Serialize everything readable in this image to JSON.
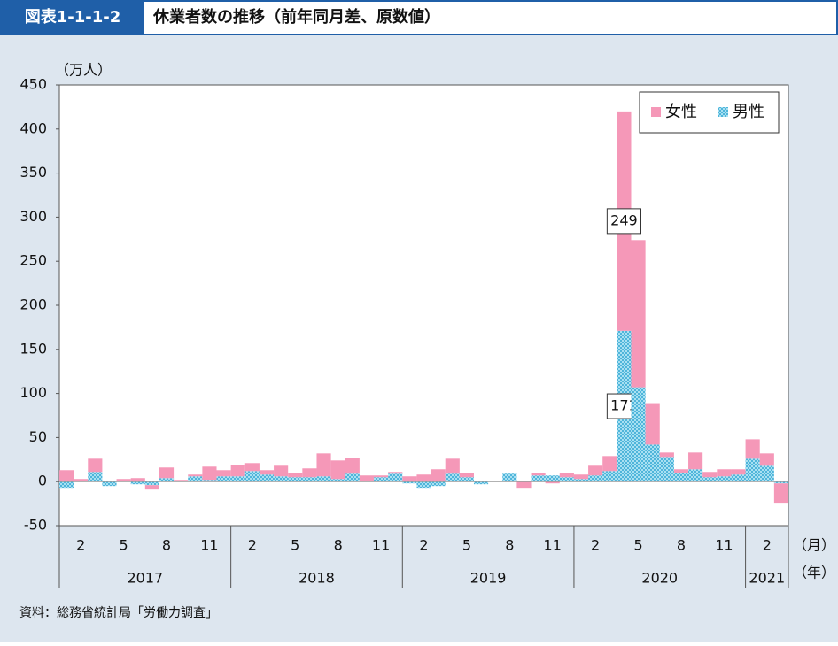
{
  "header": {
    "badge": "図表1-1-1-2",
    "title": "休業者数の推移（前年同月差、原数値）"
  },
  "chart_data": {
    "type": "stacked_bar",
    "y_unit": "（万人）",
    "x_unit_month": "（月）",
    "x_unit_year": "（年）",
    "categories": [
      null,
      "2",
      null,
      null,
      "5",
      null,
      null,
      "8",
      null,
      null,
      "11",
      null,
      null,
      "2",
      null,
      null,
      "5",
      null,
      null,
      "8",
      null,
      null,
      "11",
      null,
      null,
      "2",
      null,
      null,
      "5",
      null,
      null,
      "8",
      null,
      null,
      "11",
      null,
      null,
      "2",
      null,
      null,
      "5",
      null,
      null,
      "8",
      null,
      null,
      "11",
      null,
      null,
      "2",
      null
    ],
    "years": [
      "2017",
      "2018",
      "2019",
      "2020",
      "2021"
    ],
    "series": [
      {
        "name": "男性",
        "color": "#8ed3ea",
        "values": [
          -8,
          1,
          11,
          -5,
          1,
          -3,
          -4,
          4,
          1,
          6,
          2,
          6,
          6,
          12,
          8,
          6,
          5,
          5,
          6,
          3,
          9,
          1,
          5,
          9,
          -2,
          -8,
          -5,
          9,
          5,
          -3,
          1,
          9,
          0,
          7,
          7,
          5,
          3,
          7,
          12,
          171,
          107,
          42,
          28,
          10,
          14,
          5,
          6,
          8,
          26,
          18,
          -2
        ]
      },
      {
        "name": "女性",
        "color": "#f598b8",
        "values": [
          13,
          2,
          15,
          0,
          2,
          4,
          -5,
          12,
          1,
          2,
          15,
          7,
          13,
          9,
          5,
          12,
          5,
          10,
          26,
          21,
          18,
          6,
          2,
          2,
          6,
          8,
          14,
          17,
          5,
          0,
          0,
          0,
          -8,
          3,
          -2,
          5,
          5,
          11,
          17,
          249,
          167,
          47,
          5,
          4,
          19,
          6,
          8,
          6,
          22,
          14,
          -22
        ]
      }
    ],
    "labeled_categories": [
      39
    ],
    "ylim": [
      -50,
      450
    ],
    "yticks": [
      -50,
      0,
      50,
      100,
      150,
      200,
      250,
      300,
      350,
      400,
      450
    ],
    "grid": false,
    "legend": "upper right"
  },
  "source": "資料：総務省統計局「労働力調査」"
}
